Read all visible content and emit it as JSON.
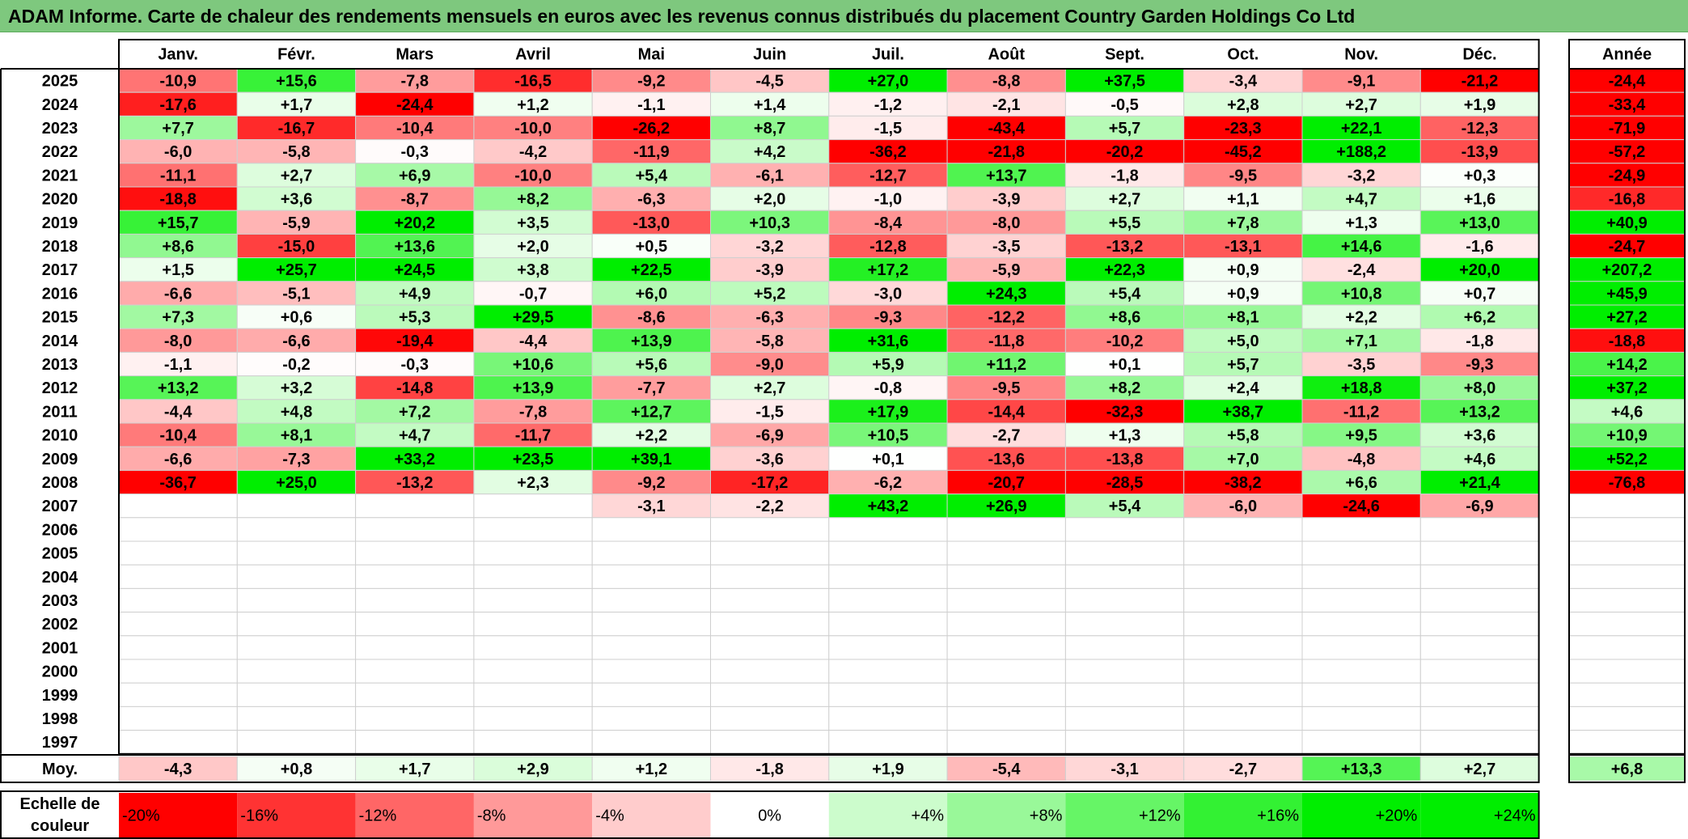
{
  "title": "ADAM Informe. Carte de chaleur des rendements mensuels en euros avec les revenus connus distribués du placement Country Garden Holdings Co Ltd",
  "colors": {
    "title_bg": "#7ec87e",
    "negative_max": "#ff0000",
    "neutral": "#ffffff",
    "positive_max": "#00ee00"
  },
  "chart_data": {
    "type": "heatmap",
    "months": [
      "Janv.",
      "Févr.",
      "Mars",
      "Avril",
      "Mai",
      "Juin",
      "Juil.",
      "Août",
      "Sept.",
      "Oct.",
      "Nov.",
      "Déc."
    ],
    "year_label": "Année",
    "years": [
      "2025",
      "2024",
      "2023",
      "2022",
      "2021",
      "2020",
      "2019",
      "2018",
      "2017",
      "2016",
      "2015",
      "2014",
      "2013",
      "2012",
      "2011",
      "2010",
      "2009",
      "2008",
      "2007",
      "2006",
      "2005",
      "2004",
      "2003",
      "2002",
      "2001",
      "2000",
      "1999",
      "1998",
      "1997"
    ],
    "values": [
      [
        "-10,9",
        "+15,6",
        "-7,8",
        "-16,5",
        "-9,2",
        "-4,5",
        "+27,0",
        "-8,8",
        "+37,5",
        "-3,4",
        "-9,1",
        "-21,2"
      ],
      [
        "-17,6",
        "+1,7",
        "-24,4",
        "+1,2",
        "-1,1",
        "+1,4",
        "-1,2",
        "-2,1",
        "-0,5",
        "+2,8",
        "+2,7",
        "+1,9"
      ],
      [
        "+7,7",
        "-16,7",
        "-10,4",
        "-10,0",
        "-26,2",
        "+8,7",
        "-1,5",
        "-43,4",
        "+5,7",
        "-23,3",
        "+22,1",
        "-12,3"
      ],
      [
        "-6,0",
        "-5,8",
        "-0,3",
        "-4,2",
        "-11,9",
        "+4,2",
        "-36,2",
        "-21,8",
        "-20,2",
        "-45,2",
        "+188,2",
        "-13,9"
      ],
      [
        "-11,1",
        "+2,7",
        "+6,9",
        "-10,0",
        "+5,4",
        "-6,1",
        "-12,7",
        "+13,7",
        "-1,8",
        "-9,5",
        "-3,2",
        "+0,3"
      ],
      [
        "-18,8",
        "+3,6",
        "-8,7",
        "+8,2",
        "-6,3",
        "+2,0",
        "-1,0",
        "-3,9",
        "+2,7",
        "+1,1",
        "+4,7",
        "+1,6"
      ],
      [
        "+15,7",
        "-5,9",
        "+20,2",
        "+3,5",
        "-13,0",
        "+10,3",
        "-8,4",
        "-8,0",
        "+5,5",
        "+7,8",
        "+1,3",
        "+13,0"
      ],
      [
        "+8,6",
        "-15,0",
        "+13,6",
        "+2,0",
        "+0,5",
        "-3,2",
        "-12,8",
        "-3,5",
        "-13,2",
        "-13,1",
        "+14,6",
        "-1,6"
      ],
      [
        "+1,5",
        "+25,7",
        "+24,5",
        "+3,8",
        "+22,5",
        "-3,9",
        "+17,2",
        "-5,9",
        "+22,3",
        "+0,9",
        "-2,4",
        "+20,0"
      ],
      [
        "-6,6",
        "-5,1",
        "+4,9",
        "-0,7",
        "+6,0",
        "+5,2",
        "-3,0",
        "+24,3",
        "+5,4",
        "+0,9",
        "+10,8",
        "+0,7"
      ],
      [
        "+7,3",
        "+0,6",
        "+5,3",
        "+29,5",
        "-8,6",
        "-6,3",
        "-9,3",
        "-12,2",
        "+8,6",
        "+8,1",
        "+2,2",
        "+6,2"
      ],
      [
        "-8,0",
        "-6,6",
        "-19,4",
        "-4,4",
        "+13,9",
        "-5,8",
        "+31,6",
        "-11,8",
        "-10,2",
        "+5,0",
        "+7,1",
        "-1,8"
      ],
      [
        "-1,1",
        "-0,2",
        "-0,3",
        "+10,6",
        "+5,6",
        "-9,0",
        "+5,9",
        "+11,2",
        "+0,1",
        "+5,7",
        "-3,5",
        "-9,3"
      ],
      [
        "+13,2",
        "+3,2",
        "-14,8",
        "+13,9",
        "-7,7",
        "+2,7",
        "-0,8",
        "-9,5",
        "+8,2",
        "+2,4",
        "+18,8",
        "+8,0"
      ],
      [
        "-4,4",
        "+4,8",
        "+7,2",
        "-7,8",
        "+12,7",
        "-1,5",
        "+17,9",
        "-14,4",
        "-32,3",
        "+38,7",
        "-11,2",
        "+13,2"
      ],
      [
        "-10,4",
        "+8,1",
        "+4,7",
        "-11,7",
        "+2,2",
        "-6,9",
        "+10,5",
        "-2,7",
        "+1,3",
        "+5,8",
        "+9,5",
        "+3,6"
      ],
      [
        "-6,6",
        "-7,3",
        "+33,2",
        "+23,5",
        "+39,1",
        "-3,6",
        "+0,1",
        "-13,6",
        "-13,8",
        "+7,0",
        "-4,8",
        "+4,6"
      ],
      [
        "-36,7",
        "+25,0",
        "-13,2",
        "+2,3",
        "-9,2",
        "-17,2",
        "-6,2",
        "-20,7",
        "-28,5",
        "-38,2",
        "+6,6",
        "+21,4"
      ],
      [
        "",
        "",
        "",
        "",
        "-3,1",
        "-2,2",
        "+43,2",
        "+26,9",
        "+5,4",
        "-6,0",
        "-24,6",
        "-6,9"
      ],
      [
        "",
        "",
        "",
        "",
        "",
        "",
        "",
        "",
        "",
        "",
        "",
        ""
      ],
      [
        "",
        "",
        "",
        "",
        "",
        "",
        "",
        "",
        "",
        "",
        "",
        ""
      ],
      [
        "",
        "",
        "",
        "",
        "",
        "",
        "",
        "",
        "",
        "",
        "",
        ""
      ],
      [
        "",
        "",
        "",
        "",
        "",
        "",
        "",
        "",
        "",
        "",
        "",
        ""
      ],
      [
        "",
        "",
        "",
        "",
        "",
        "",
        "",
        "",
        "",
        "",
        "",
        ""
      ],
      [
        "",
        "",
        "",
        "",
        "",
        "",
        "",
        "",
        "",
        "",
        "",
        ""
      ],
      [
        "",
        "",
        "",
        "",
        "",
        "",
        "",
        "",
        "",
        "",
        "",
        ""
      ],
      [
        "",
        "",
        "",
        "",
        "",
        "",
        "",
        "",
        "",
        "",
        "",
        ""
      ],
      [
        "",
        "",
        "",
        "",
        "",
        "",
        "",
        "",
        "",
        "",
        "",
        ""
      ],
      [
        "",
        "",
        "",
        "",
        "",
        "",
        "",
        "",
        "",
        "",
        "",
        ""
      ]
    ],
    "annual": [
      "-24,4",
      "-33,4",
      "-71,9",
      "-57,2",
      "-24,9",
      "-16,8",
      "+40,9",
      "-24,7",
      "+207,2",
      "+45,9",
      "+27,2",
      "-18,8",
      "+14,2",
      "+37,2",
      "+4,6",
      "+10,9",
      "+52,2",
      "-76,8",
      "",
      "",
      "",
      "",
      "",
      "",
      "",
      "",
      "",
      "",
      ""
    ],
    "avg_label": "Moy.",
    "averages": [
      "-4,3",
      "+0,8",
      "+1,7",
      "+2,9",
      "+1,2",
      "-1,8",
      "+1,9",
      "-5,4",
      "-3,1",
      "-2,7",
      "+13,3",
      "+2,7"
    ],
    "avg_annual": "+6,8",
    "scale_label": [
      "Echelle de",
      "couleur"
    ],
    "scale": [
      {
        "label": "-20%",
        "value": -20
      },
      {
        "label": "-16%",
        "value": -16
      },
      {
        "label": "-12%",
        "value": -12
      },
      {
        "label": "-8%",
        "value": -8
      },
      {
        "label": "-4%",
        "value": -4
      },
      {
        "label": "0%",
        "value": 0
      },
      {
        "label": "+4%",
        "value": 4
      },
      {
        "label": "+8%",
        "value": 8
      },
      {
        "label": "+12%",
        "value": 12
      },
      {
        "label": "+16%",
        "value": 16
      },
      {
        "label": "+20%",
        "value": 20
      },
      {
        "label": "+24%",
        "value": 24
      }
    ]
  }
}
